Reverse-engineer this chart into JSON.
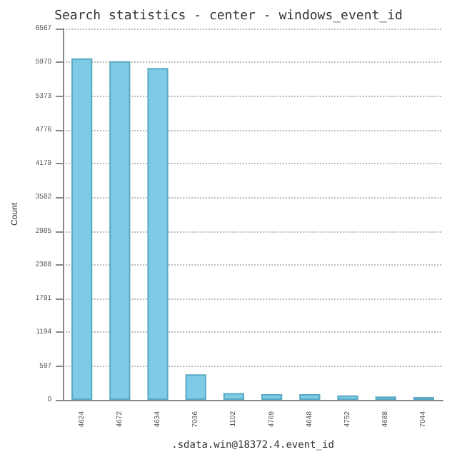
{
  "chart_data": {
    "type": "bar",
    "title": "Search statistics - center - windows_event_id",
    "xlabel": ".sdata.win@18372.4.event_id",
    "ylabel": "Count",
    "categories": [
      "4624",
      "4672",
      "4634",
      "7036",
      "1102",
      "4769",
      "4648",
      "4752",
      "4688",
      "7044"
    ],
    "values": [
      6040,
      5990,
      5870,
      450,
      120,
      100,
      100,
      80,
      60,
      50
    ],
    "color": "#7ecbe6",
    "ylim": [
      0,
      6567
    ],
    "yticks": [
      0,
      597,
      1194,
      1791,
      2388,
      2985,
      3582,
      4179,
      4776,
      5373,
      5970,
      6567
    ],
    "grid": "y",
    "line_style": "dotted"
  }
}
